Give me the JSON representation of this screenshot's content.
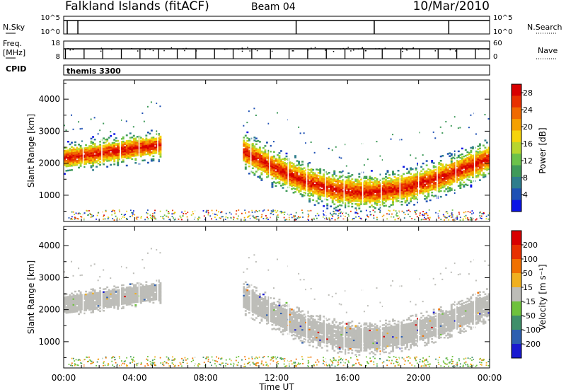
{
  "header": {
    "station": "Falkland Islands (fitACF)",
    "beam": "Beam 04",
    "date": "10/Mar/2010"
  },
  "param_rows": {
    "nsky_label": "N.Sky",
    "nsky_ticks": [
      "10^5",
      "10^0"
    ],
    "nsearch_label": "N.Search",
    "freq_label": [
      "Freq.",
      "[MHz]"
    ],
    "freq_ticks": [
      "18",
      "8"
    ],
    "nave_label": "Nave",
    "nave_ticks": [
      "60",
      "0"
    ],
    "cpid_label": "CPID",
    "cpid_value": "themis 3300"
  },
  "chart_data": [
    {
      "type": "heatmap",
      "title": "",
      "xlabel": "Time UT",
      "ylabel": "Slant Range [km]",
      "colorbar_label": "Power [dB]",
      "x_ticks": [
        "00:00",
        "04:00",
        "08:00",
        "12:00",
        "16:00",
        "20:00",
        "00:00"
      ],
      "xlim_hours": [
        0,
        24
      ],
      "y_ticks": [
        1000,
        2000,
        3000,
        4000
      ],
      "ylim": [
        180,
        4600
      ],
      "colorbar_ticks": [
        4,
        8,
        12,
        16,
        20,
        24,
        28
      ],
      "colorbar_range": [
        0,
        30
      ],
      "colorbar_colors": [
        "#0a14e6",
        "#1e50b4",
        "#2e7d8c",
        "#3f9a5a",
        "#6cc24a",
        "#b8d62e",
        "#f5d40a",
        "#f5a000",
        "#f06a00",
        "#e83000",
        "#d80000"
      ],
      "echo_regions": [
        {
          "start_hr": 0.0,
          "end_hr": 5.4,
          "center_km_start": 2150,
          "center_km_end": 2550,
          "half_width_km": 260
        },
        {
          "start_hr": 10.1,
          "end_hr": 24.0,
          "center_km_start": 2350,
          "center_km_mid": 1080,
          "mid_hr": 16.8,
          "center_km_end": 2150,
          "half_width_km": 330
        }
      ]
    },
    {
      "type": "heatmap",
      "title": "",
      "xlabel": "Time UT",
      "ylabel": "Slant Range [km]",
      "colorbar_label": "Velocity [m s⁻¹]",
      "x_ticks": [
        "00:00",
        "04:00",
        "08:00",
        "12:00",
        "16:00",
        "20:00",
        "00:00"
      ],
      "xlim_hours": [
        0,
        24
      ],
      "y_ticks": [
        1000,
        2000,
        3000,
        4000
      ],
      "ylim": [
        180,
        4600
      ],
      "colorbar_ticks": [
        200,
        100,
        50,
        15,
        -15,
        -50,
        -100,
        -200
      ],
      "colorbar_range": [
        -250,
        250
      ],
      "colorbar_colors": [
        "#1a1ad0",
        "#2d5fb0",
        "#3f8f6a",
        "#6ec23c",
        "#bdbdb8",
        "#f0b020",
        "#f07000",
        "#e83000",
        "#d80000"
      ],
      "echo_regions": [
        {
          "start_hr": 0.0,
          "end_hr": 5.4,
          "center_km_start": 2150,
          "center_km_end": 2550,
          "half_width_km": 300
        },
        {
          "start_hr": 10.1,
          "end_hr": 24.0,
          "center_km_start": 2350,
          "center_km_mid": 1080,
          "mid_hr": 16.8,
          "center_km_end": 2150,
          "half_width_km": 420
        }
      ]
    }
  ]
}
